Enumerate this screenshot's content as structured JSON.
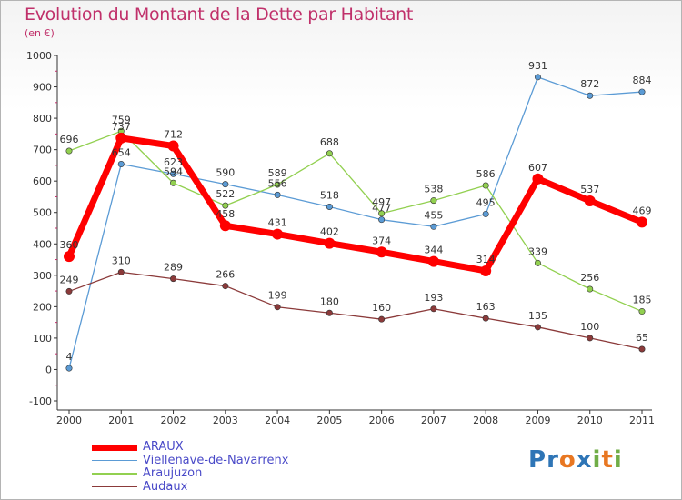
{
  "chart_data": {
    "type": "line",
    "title": "Evolution du Montant de la Dette par Habitant",
    "subtitle": "(en €)",
    "x": [
      "2000",
      "2001",
      "2002",
      "2003",
      "2004",
      "2005",
      "2006",
      "2007",
      "2008",
      "2009",
      "2010",
      "2011"
    ],
    "ylim": [
      -100,
      1000
    ],
    "yticks": [
      -100,
      0,
      100,
      200,
      300,
      400,
      500,
      600,
      700,
      800,
      900,
      1000
    ],
    "grid": false,
    "legend_position": "bottom-left",
    "series": [
      {
        "name": "ARAUX",
        "color": "#ff0000",
        "values": [
          360,
          737,
          712,
          458,
          431,
          402,
          374,
          344,
          314,
          607,
          537,
          469
        ]
      },
      {
        "name": "Viellenave-de-Navarrenx",
        "color": "#5b9bd5",
        "values": [
          4,
          654,
          623,
          590,
          556,
          518,
          477,
          455,
          495,
          931,
          872,
          884
        ]
      },
      {
        "name": "Araujuzon",
        "color": "#92d050",
        "values": [
          696,
          759,
          594,
          522,
          589,
          688,
          497,
          538,
          586,
          339,
          256,
          185
        ]
      },
      {
        "name": "Audaux",
        "color": "#8b3a3a",
        "values": [
          249,
          310,
          289,
          266,
          199,
          180,
          160,
          193,
          163,
          135,
          100,
          65
        ]
      }
    ]
  },
  "brand": {
    "letters": [
      {
        "ch": "P",
        "color": "#2e75b6"
      },
      {
        "ch": "r",
        "color": "#2e75b6"
      },
      {
        "ch": "o",
        "color": "#e87722"
      },
      {
        "ch": "x",
        "color": "#2e75b6"
      },
      {
        "ch": "i",
        "color": "#70ad47"
      },
      {
        "ch": "t",
        "color": "#e87722"
      },
      {
        "ch": "i",
        "color": "#70ad47"
      }
    ]
  }
}
